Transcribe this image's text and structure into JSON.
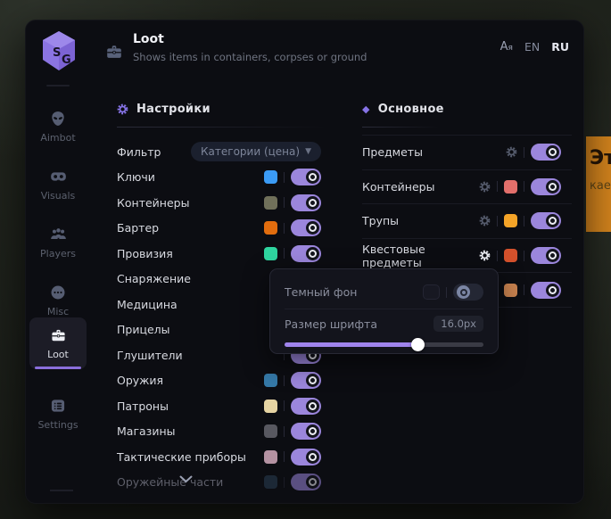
{
  "background_banner": {
    "line1": "Эт",
    "line2": "кае",
    "color": "#d2831d"
  },
  "sidebar": {
    "logo_text": "SG",
    "items": [
      {
        "label": "Aimbot",
        "icon": "alien-icon",
        "active": false
      },
      {
        "label": "Visuals",
        "icon": "vr-goggles-icon",
        "active": false
      },
      {
        "label": "Players",
        "icon": "players-icon",
        "active": false
      },
      {
        "label": "Misc",
        "icon": "chat-dots-icon",
        "active": false
      },
      {
        "label": "Loot",
        "icon": "briefcase-icon",
        "active": true
      },
      {
        "label": "Settings",
        "icon": "list-icon",
        "active": false
      }
    ]
  },
  "header": {
    "title": "Loot",
    "subtitle": "Shows items in containers, corpses or ground",
    "translate_icon": "Aя",
    "languages": [
      {
        "label": "EN",
        "active": false
      },
      {
        "label": "RU",
        "active": true
      }
    ]
  },
  "left_panel": {
    "title": "Настройки",
    "filter": {
      "label": "Фильтр",
      "value": "Категории (цена)"
    },
    "rows": [
      {
        "label": "Ключи",
        "color": "#3b9bf5",
        "on": true
      },
      {
        "label": "Контейнеры",
        "color": "#70705a",
        "on": true
      },
      {
        "label": "Бартер",
        "color": "#e26d0e",
        "on": true
      },
      {
        "label": "Провизия",
        "color": "#2fd6a0",
        "on": true
      },
      {
        "label": "Снаряжение",
        "color": "",
        "on": true
      },
      {
        "label": "Медицина",
        "color": "",
        "on": true
      },
      {
        "label": "Прицелы",
        "color": "",
        "on": true
      },
      {
        "label": "Глушители",
        "color": "",
        "on": true
      },
      {
        "label": "Оружия",
        "color": "#3579a8",
        "on": true
      },
      {
        "label": "Патроны",
        "color": "#e6d4a3",
        "on": true
      },
      {
        "label": "Магазины",
        "color": "#585860",
        "on": true
      },
      {
        "label": "Тактические приборы",
        "color": "#b492a2",
        "on": true
      },
      {
        "label": "Оружейные части",
        "color": "#2a3f55",
        "on": true,
        "faded": true
      }
    ]
  },
  "right_panel": {
    "title": "Основное",
    "rows": [
      {
        "label": "Предметы",
        "gear": true,
        "gear_active": false,
        "color": "",
        "on": true
      },
      {
        "label": "Контейнеры",
        "gear": true,
        "gear_active": false,
        "color": "#e26f6b",
        "on": true
      },
      {
        "label": "Трупы",
        "gear": true,
        "gear_active": false,
        "color": "#f4a428",
        "on": true
      },
      {
        "label": "Квестовые предметы",
        "gear": true,
        "gear_active": true,
        "color": "#d4512c",
        "on": true
      },
      {
        "label": "",
        "gear": true,
        "gear_active": false,
        "color": "#c8824f",
        "on": true
      }
    ]
  },
  "popup": {
    "dark_bg": {
      "label": "Темный фон",
      "on": false
    },
    "font_size": {
      "label": "Размер шрифта",
      "value": "16.0px",
      "percent": 67
    }
  },
  "accent_colors": {
    "purple": "#8a6fdc",
    "toggle_on": "#9b86dc",
    "banner_orange": "#d2831d"
  }
}
